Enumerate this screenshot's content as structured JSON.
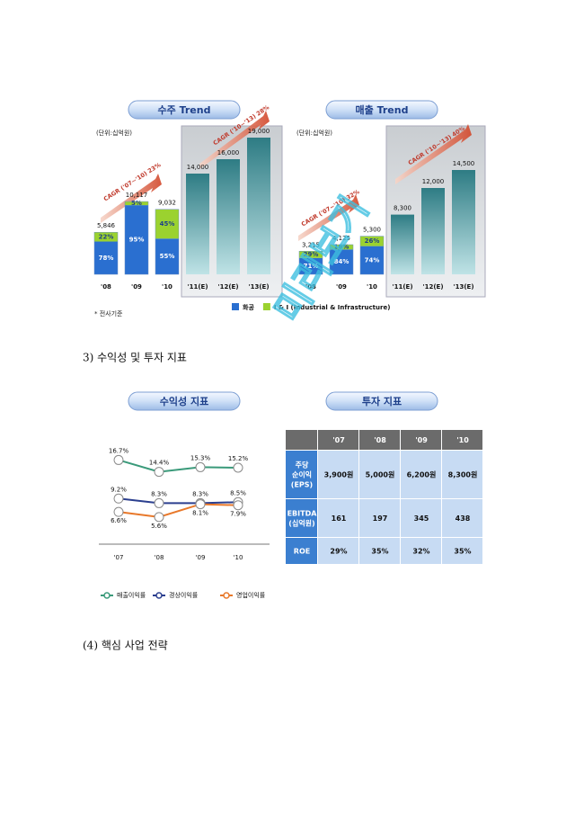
{
  "headings": [
    "3) 수익성 및 투자 지표",
    "(4) 핵심 사업 전략"
  ],
  "note": "* 전사기준",
  "watermark": "미리보기",
  "chart_data": [
    {
      "type": "bar",
      "title": "수주 Trend",
      "unit": "(단위:십억원)",
      "categories": [
        "'08",
        "'09",
        "'10",
        "'11(E)",
        "'12(E)",
        "'13(E)"
      ],
      "values": [
        5846,
        10117,
        9032,
        14000,
        16000,
        19000
      ],
      "value_labels": [
        "5,846",
        "10,117",
        "9,032",
        "14,000",
        "16,000",
        "19,000"
      ],
      "series": [
        {
          "name": "화공",
          "color": "#2a6fd0",
          "values": [
            78,
            95,
            55,
            null,
            null,
            null
          ],
          "value_labels": [
            "78%",
            "95%",
            "55%",
            null,
            null,
            null
          ]
        },
        {
          "name": "I & I (Industrial & Infrastructure)",
          "color": "#9bd22f",
          "values": [
            22,
            5,
            45,
            null,
            null,
            null
          ],
          "value_labels": [
            "22%",
            "5%",
            "45%",
            null,
            null,
            null
          ]
        }
      ],
      "annotations": [
        "CAGR ('07~'10) 23%",
        "CAGR ('10~'13) 28%"
      ]
    },
    {
      "type": "bar",
      "title": "매출 Trend",
      "unit": "(단위:십억원)",
      "categories": [
        "'08",
        "'09",
        "'10",
        "'11(E)",
        "'12(E)",
        "'13(E)"
      ],
      "values": [
        3215,
        4125,
        5300,
        8300,
        12000,
        14500
      ],
      "value_labels": [
        "3,215",
        "4,125",
        "5,300",
        "8,300",
        "12,000",
        "14,500"
      ],
      "series": [
        {
          "color": "#2a6fd0",
          "values": [
            71,
            84,
            74,
            null,
            null,
            null
          ],
          "value_labels": [
            "71%",
            "84%",
            "74%",
            null,
            null,
            null
          ]
        },
        {
          "color": "#9bd22f",
          "values": [
            29,
            16,
            26,
            null,
            null,
            null
          ],
          "value_labels": [
            "29%",
            "16%",
            "26%",
            null,
            null,
            null
          ]
        }
      ],
      "annotations": [
        "CAGR ('07~'10) 32%",
        "CAGR ('10~'13) 40%"
      ]
    },
    {
      "type": "line",
      "title": "수익성 지표",
      "categories": [
        "'07",
        "'08",
        "'09",
        "'10"
      ],
      "ylim": [
        4,
        18
      ],
      "series": [
        {
          "name": "매출이익률",
          "color": "#3a9a7a",
          "values": [
            16.7,
            14.4,
            15.3,
            15.2
          ],
          "value_labels": [
            "16.7%",
            "14.4%",
            "15.3%",
            "15.2%"
          ]
        },
        {
          "name": "경상이익률",
          "color": "#2b3f8f",
          "values": [
            9.2,
            8.3,
            8.3,
            8.5
          ],
          "value_labels": [
            "9.2%",
            "8.3%",
            "8.3%",
            "8.5%"
          ]
        },
        {
          "name": "영업이익률",
          "color": "#e8782a",
          "values": [
            6.6,
            5.6,
            8.1,
            7.9
          ],
          "value_labels": [
            "6.6%",
            "5.6%",
            "8.1%",
            "7.9%"
          ]
        }
      ]
    }
  ],
  "table": {
    "title": "투자 지표",
    "header": [
      "'07",
      "'08",
      "'09",
      "'10"
    ],
    "rows": [
      {
        "label": [
          "주당",
          "순이익",
          "(EPS)"
        ],
        "cells": [
          "3,900원",
          "5,000원",
          "6,200원",
          "8,300원"
        ]
      },
      {
        "label": [
          "EBITDA",
          "(십억원)"
        ],
        "cells": [
          "161",
          "197",
          "345",
          "438"
        ]
      },
      {
        "label": [
          "ROE"
        ],
        "cells": [
          "29%",
          "35%",
          "32%",
          "35%"
        ]
      }
    ]
  }
}
